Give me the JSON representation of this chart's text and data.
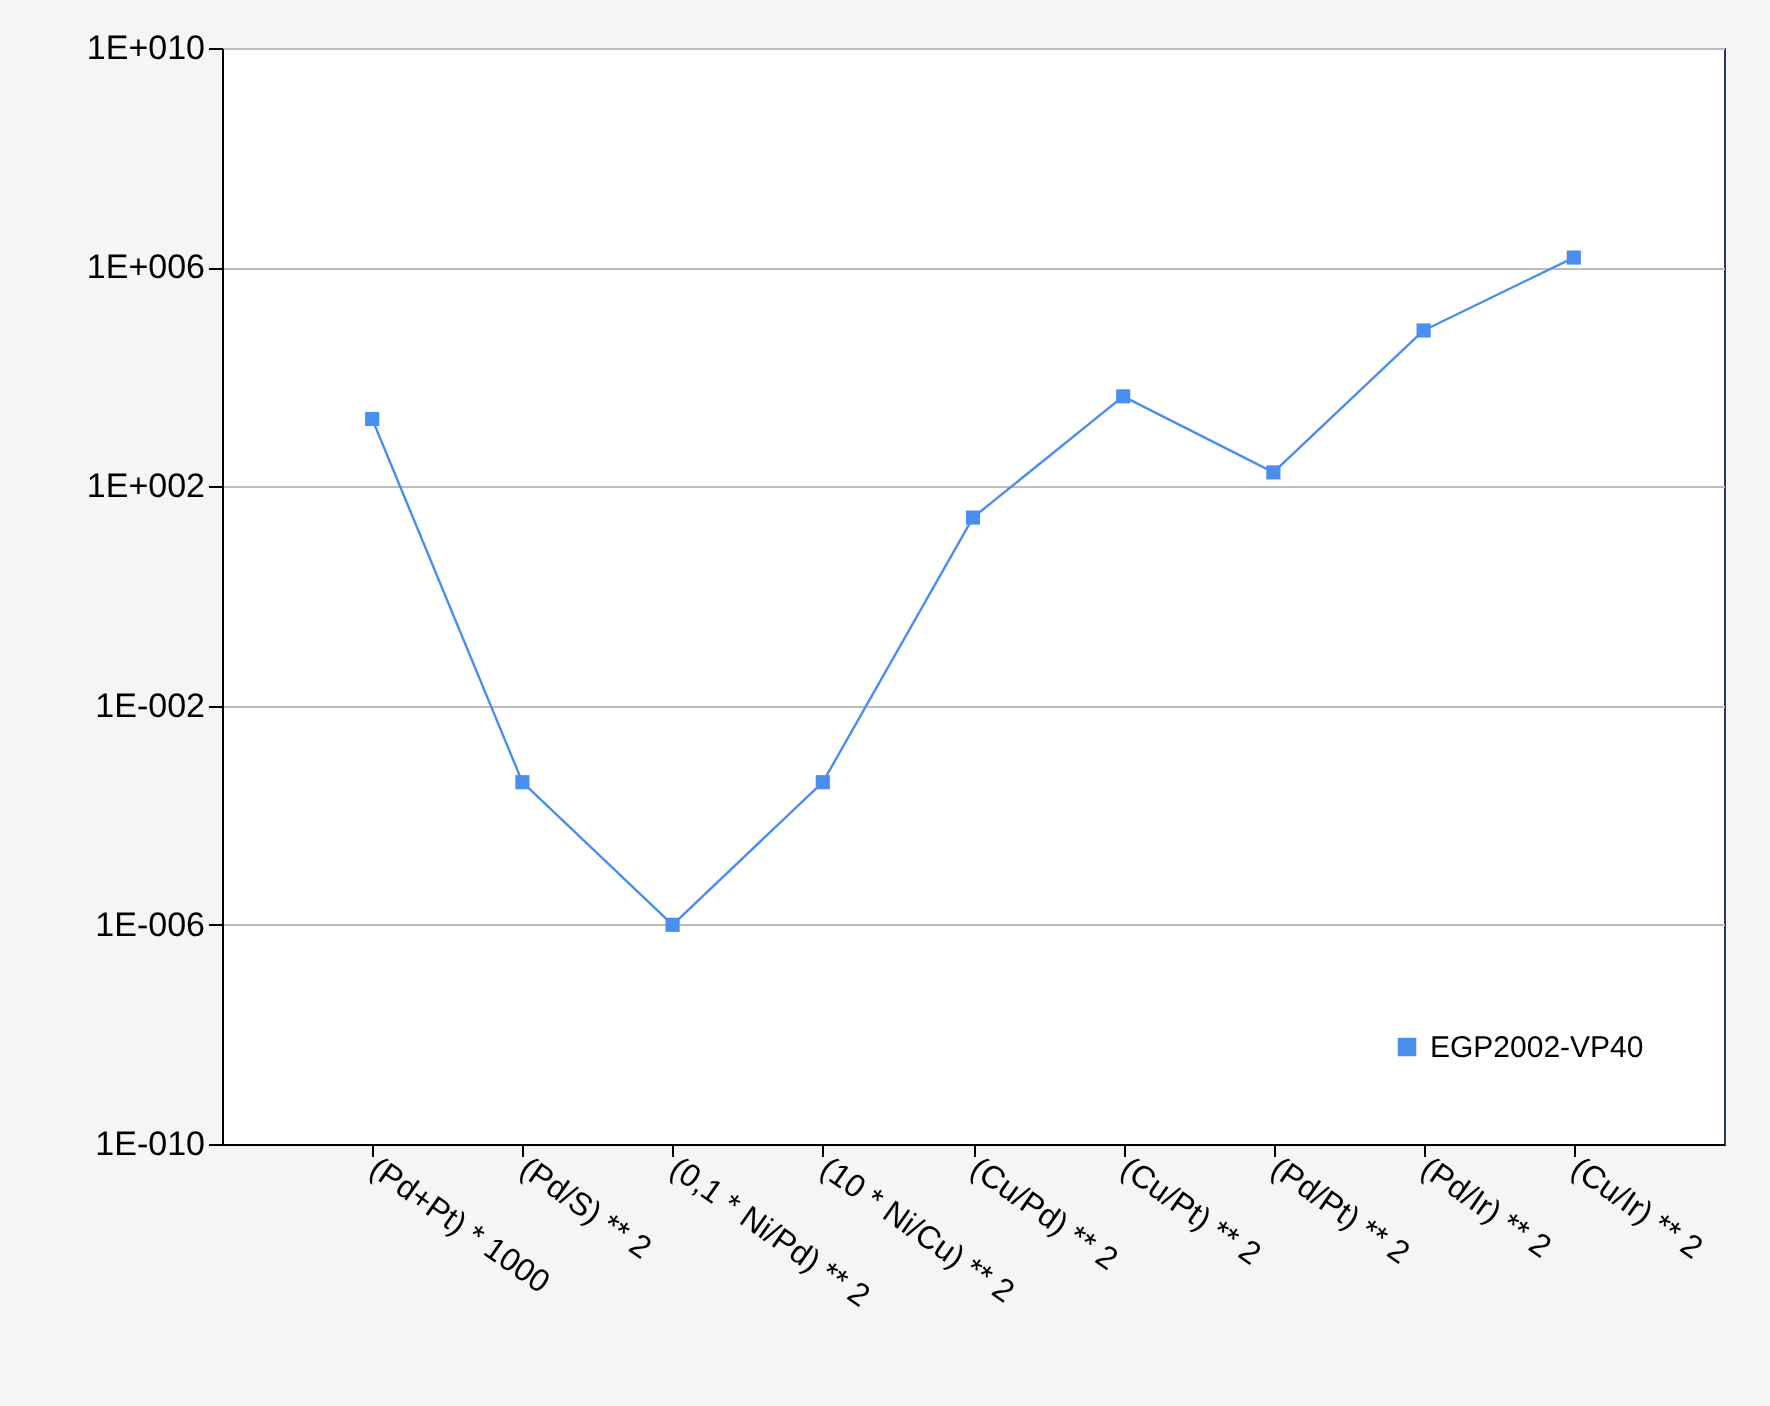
{
  "chart_data": {
    "type": "line",
    "categories": [
      "(Pd+Pt) * 1000",
      "(Pd/S) ** 2",
      "(0,1 * Ni/Pd) ** 2",
      "(10 * Ni/Cu) ** 2",
      "(Cu/Pd) ** 2",
      "(Cu/Pt) ** 2",
      "(Pd/Pt) ** 2",
      "(Pd/Ir) ** 2",
      "(Cu/Ir) ** 2"
    ],
    "series": [
      {
        "name": "EGP2002-VP40",
        "color": "#4a8ef0",
        "values": [
          1700,
          0.0004,
          1e-06,
          0.0004,
          27,
          4400,
          180,
          70000,
          1500000
        ]
      }
    ],
    "log": "y",
    "ylim": [
      1e-10,
      10000000000.0
    ],
    "yticks": [
      {
        "value": 1e-10,
        "label": "1E-010"
      },
      {
        "value": 1e-06,
        "label": "1E-006"
      },
      {
        "value": 0.01,
        "label": "1E-002"
      },
      {
        "value": 100,
        "label": "1E+002"
      },
      {
        "value": 1000000,
        "label": "1E+006"
      },
      {
        "value": 10000000000,
        "label": "1E+010"
      }
    ],
    "grid": "y",
    "legend": "bottom right",
    "marker": "square",
    "line_style": "solid"
  }
}
